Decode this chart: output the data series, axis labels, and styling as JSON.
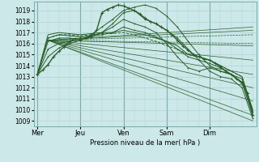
{
  "xlabel": "Pression niveau de la mer( hPa )",
  "days": [
    "Mer",
    "Jeu",
    "Ven",
    "Sam",
    "Dim"
  ],
  "day_positions": [
    0,
    24,
    48,
    72,
    96
  ],
  "ylim": [
    1008.5,
    1019.8
  ],
  "yticks": [
    1009,
    1010,
    1011,
    1012,
    1013,
    1014,
    1015,
    1016,
    1017,
    1018,
    1019
  ],
  "xlim": [
    -2,
    122
  ],
  "bg_color": "#cce8e8",
  "grid_color_major": "#aacece",
  "grid_color_vert": "#b8d8d8",
  "line_color": "#2a5e2a",
  "total_hours": 120,
  "forecast_lines": [
    {
      "x": [
        6,
        120
      ],
      "y": [
        1016.3,
        1017.2
      ],
      "style": "solid"
    },
    {
      "x": [
        6,
        120
      ],
      "y": [
        1016.3,
        1015.8
      ],
      "style": "solid"
    },
    {
      "x": [
        6,
        120
      ],
      "y": [
        1016.3,
        1014.5
      ],
      "style": "solid"
    },
    {
      "x": [
        6,
        120
      ],
      "y": [
        1016.3,
        1013.2
      ],
      "style": "solid"
    },
    {
      "x": [
        6,
        120
      ],
      "y": [
        1016.3,
        1012.0
      ],
      "style": "solid"
    },
    {
      "x": [
        6,
        120
      ],
      "y": [
        1016.3,
        1010.8
      ],
      "style": "solid"
    },
    {
      "x": [
        6,
        120
      ],
      "y": [
        1016.3,
        1009.5
      ],
      "style": "solid"
    },
    {
      "x": [
        6,
        120
      ],
      "y": [
        1016.3,
        1009.0
      ],
      "style": "solid"
    },
    {
      "x": [
        6,
        120
      ],
      "y": [
        1016.3,
        1017.5
      ],
      "style": "solid"
    },
    {
      "x": [
        6,
        120
      ],
      "y": [
        1016.3,
        1016.8
      ],
      "style": "dashed"
    }
  ],
  "obs_line_x": [
    0,
    3,
    6,
    9,
    12,
    15,
    18,
    21,
    24,
    27,
    30,
    33,
    36,
    39,
    42,
    45,
    48,
    51,
    54,
    57,
    60,
    63,
    66,
    69,
    72,
    75,
    78,
    81,
    84,
    87,
    90,
    93,
    96,
    99,
    102,
    105,
    108,
    111,
    114,
    117,
    120
  ],
  "obs_line_y": [
    1013.2,
    1013.6,
    1014.1,
    1014.8,
    1015.3,
    1015.7,
    1016.2,
    1016.4,
    1016.4,
    1016.5,
    1016.7,
    1017.2,
    1018.8,
    1019.1,
    1019.3,
    1019.5,
    1019.4,
    1019.2,
    1019.0,
    1018.7,
    1018.3,
    1018.0,
    1017.8,
    1017.5,
    1017.2,
    1016.8,
    1016.3,
    1015.8,
    1015.4,
    1015.0,
    1014.8,
    1014.6,
    1014.5,
    1014.2,
    1013.9,
    1013.5,
    1013.2,
    1012.8,
    1012.4,
    1011.5,
    1009.5
  ],
  "extra_lines": [
    {
      "x": [
        0,
        6,
        12,
        18,
        24,
        30,
        36,
        42,
        48,
        54,
        60,
        66,
        72,
        78,
        84,
        90,
        96,
        102,
        108,
        114,
        120
      ],
      "y": [
        1013.2,
        1014.8,
        1015.6,
        1016.0,
        1016.3,
        1016.8,
        1017.5,
        1018.2,
        1019.0,
        1019.3,
        1019.5,
        1019.2,
        1018.5,
        1017.5,
        1016.2,
        1015.0,
        1014.0,
        1013.5,
        1013.2,
        1012.5,
        1009.5
      ],
      "marker": "+",
      "style": "solid"
    },
    {
      "x": [
        0,
        6,
        12,
        18,
        24,
        30,
        36,
        42,
        48,
        54,
        60,
        66,
        72,
        78,
        84,
        90,
        96,
        102,
        108,
        114,
        120
      ],
      "y": [
        1013.2,
        1015.5,
        1016.0,
        1016.2,
        1016.3,
        1016.6,
        1017.0,
        1017.8,
        1018.8,
        1019.0,
        1018.2,
        1017.8,
        1017.2,
        1016.5,
        1015.5,
        1014.5,
        1013.5,
        1013.0,
        1012.8,
        1012.0,
        1009.2
      ],
      "marker": "+",
      "style": "solid"
    },
    {
      "x": [
        0,
        6,
        12,
        18,
        24,
        30,
        36,
        42,
        48,
        54,
        60,
        66,
        72,
        78,
        84,
        90,
        96,
        102,
        108,
        114,
        120
      ],
      "y": [
        1013.2,
        1016.2,
        1016.5,
        1016.5,
        1016.4,
        1016.6,
        1017.0,
        1017.5,
        1018.2,
        1017.8,
        1017.5,
        1017.0,
        1016.0,
        1014.8,
        1013.8,
        1013.5,
        1013.8,
        1013.5,
        1013.2,
        1012.5,
        1009.5
      ],
      "marker": "+",
      "style": "solid"
    },
    {
      "x": [
        0,
        6,
        12,
        18,
        24,
        30,
        36,
        42,
        48,
        54,
        60,
        66,
        72,
        78,
        84,
        90,
        96,
        102,
        108,
        114,
        120
      ],
      "y": [
        1013.2,
        1016.5,
        1016.8,
        1016.7,
        1016.6,
        1016.7,
        1016.8,
        1017.0,
        1017.5,
        1017.2,
        1017.0,
        1016.6,
        1016.2,
        1015.5,
        1014.8,
        1014.5,
        1014.2,
        1013.8,
        1013.2,
        1012.8,
        1009.8
      ],
      "marker": "+",
      "style": "solid"
    },
    {
      "x": [
        0,
        6,
        12,
        18,
        24,
        30,
        36,
        42,
        48,
        54,
        60,
        66,
        72,
        78,
        84,
        90,
        96,
        102,
        108,
        114,
        120
      ],
      "y": [
        1013.2,
        1016.8,
        1017.0,
        1016.9,
        1016.8,
        1016.9,
        1017.0,
        1017.0,
        1017.2,
        1017.0,
        1016.8,
        1016.5,
        1016.2,
        1015.8,
        1015.0,
        1014.8,
        1014.5,
        1014.0,
        1013.5,
        1013.0,
        1010.0
      ],
      "marker": null,
      "style": "solid"
    },
    {
      "x": [
        0,
        6,
        12,
        18,
        24,
        30,
        36,
        42,
        48,
        54,
        60,
        66,
        72,
        78,
        84,
        90,
        96,
        102,
        108,
        114,
        120
      ],
      "y": [
        1013.2,
        1016.5,
        1016.8,
        1016.8,
        1016.7,
        1016.8,
        1016.9,
        1016.9,
        1017.0,
        1016.8,
        1016.5,
        1016.2,
        1015.8,
        1015.5,
        1015.0,
        1014.8,
        1014.5,
        1014.0,
        1013.5,
        1013.0,
        1009.8
      ],
      "marker": null,
      "style": "dashed"
    }
  ]
}
